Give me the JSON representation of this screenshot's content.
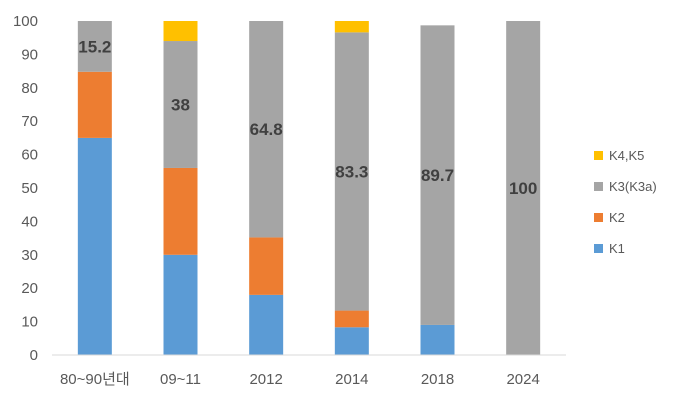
{
  "chart_data": {
    "type": "bar",
    "stacked": true,
    "categories": [
      "80~90년대",
      "09~11",
      "2012",
      "2014",
      "2018",
      "2024"
    ],
    "series": [
      {
        "name": "K1",
        "color": "#5B9BD5",
        "values": [
          65,
          30,
          18,
          8.3,
          9,
          0
        ]
      },
      {
        "name": "K2",
        "color": "#ED7D31",
        "values": [
          19.8,
          26,
          17.2,
          5,
          0,
          0
        ]
      },
      {
        "name": "K3(K3a)",
        "color": "#A5A5A5",
        "values": [
          15.2,
          38,
          64.8,
          83.3,
          89.7,
          100
        ]
      },
      {
        "name": "K4,K5",
        "color": "#FFC000",
        "values": [
          0,
          6,
          0,
          3.4,
          0,
          0
        ]
      }
    ],
    "data_labels": [
      "15.2",
      "38",
      "64.8",
      "83.3",
      "89.7",
      "100"
    ],
    "ylim": [
      0,
      100
    ],
    "yticks": [
      0,
      10,
      20,
      30,
      40,
      50,
      60,
      70,
      80,
      90,
      100
    ],
    "grid": false,
    "legend_position": "right",
    "legend_order": [
      "K4,K5",
      "K3(K3a)",
      "K2",
      "K1"
    ]
  }
}
